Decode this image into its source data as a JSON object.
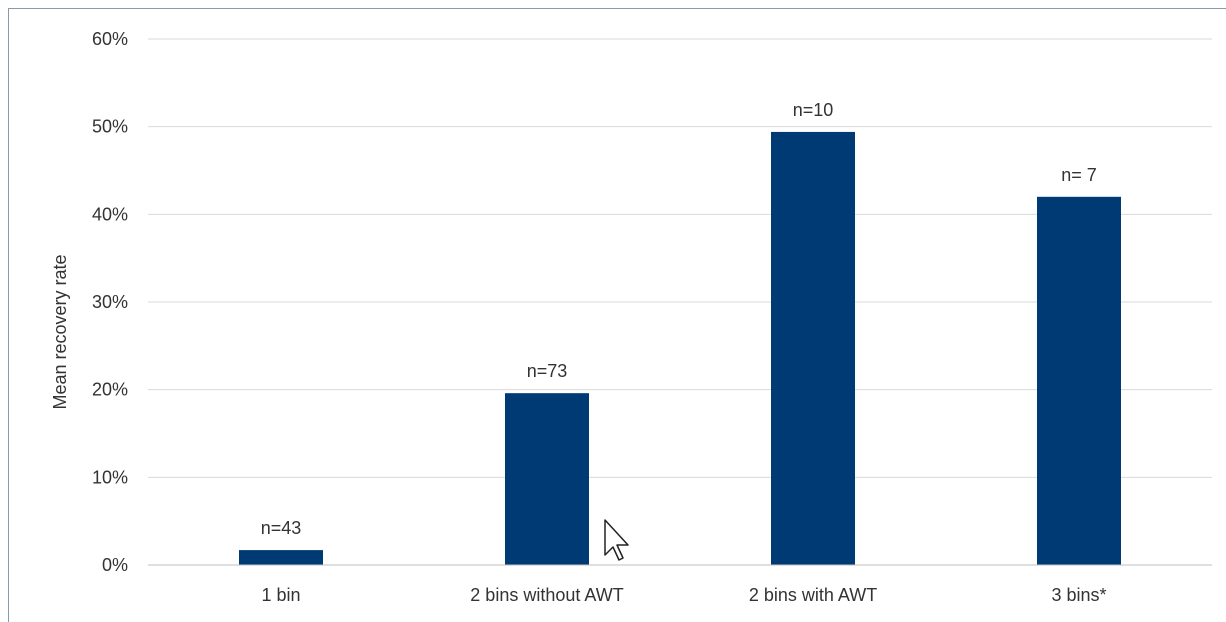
{
  "chart_data": {
    "type": "bar",
    "title": "",
    "xlabel": "",
    "ylabel": "Mean recovery rate",
    "categories": [
      "1 bin",
      "2 bins without AWT",
      "2 bins with AWT",
      "3 bins*"
    ],
    "values": [
      0.017,
      0.196,
      0.494,
      0.42
    ],
    "data_labels": [
      "n=43",
      "n=73",
      "n=10",
      "n= 7"
    ],
    "ylim": [
      0,
      0.6
    ],
    "yticks": [
      0,
      0.1,
      0.2,
      0.3,
      0.4,
      0.5,
      0.6
    ],
    "ytick_labels": [
      "0%",
      "10%",
      "20%",
      "30%",
      "40%",
      "50%",
      "60%"
    ],
    "grid": true,
    "legend": "none",
    "bar_color": "#003a75",
    "grid_color": "#d9d9d9"
  }
}
